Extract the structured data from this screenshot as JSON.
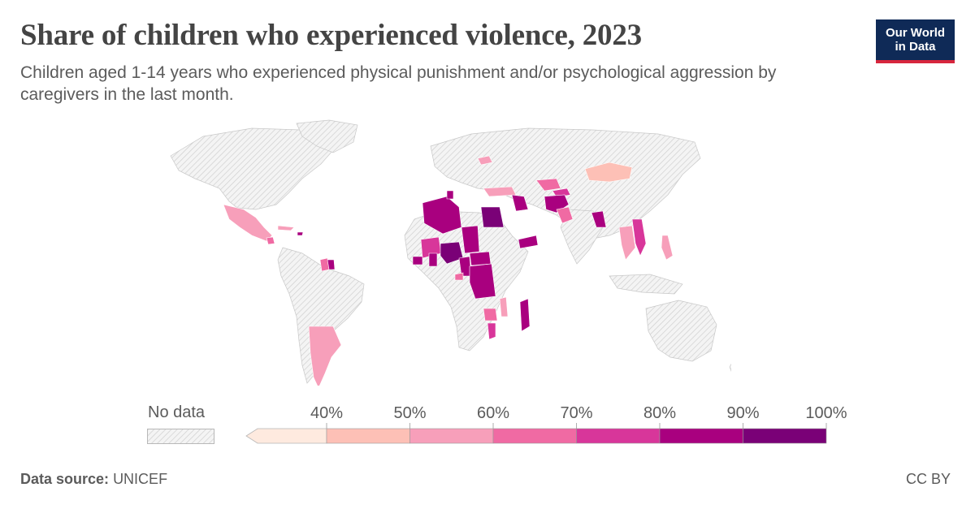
{
  "header": {
    "title": "Share of children who experienced violence, 2023",
    "subtitle": "Children aged 1-14 years who experienced physical punishment and/or psychological aggression by caregivers in the last month."
  },
  "logo": {
    "line1": "Our World",
    "line2": "in Data",
    "bg_color": "#0f2a57",
    "accent_color": "#d7263d"
  },
  "legend": {
    "no_data_label": "No data",
    "ticks": [
      "40%",
      "50%",
      "60%",
      "70%",
      "80%",
      "90%",
      "100%"
    ],
    "bins": [
      {
        "from": 40,
        "to": 50,
        "color": "#fdc0b6"
      },
      {
        "from": 50,
        "to": 60,
        "color": "#f79fba"
      },
      {
        "from": 60,
        "to": 70,
        "color": "#f06aa3"
      },
      {
        "from": 70,
        "to": 80,
        "color": "#d8369a"
      },
      {
        "from": 80,
        "to": 90,
        "color": "#a9007f"
      },
      {
        "from": 90,
        "to": 100,
        "color": "#7a0177"
      }
    ],
    "below_color": "#feeadf"
  },
  "footer": {
    "source_label": "Data source:",
    "source_value": "UNICEF",
    "license": "CC BY"
  },
  "map": {
    "no_data_fill": "#f2f2f2",
    "hatch_color": "#c9c9c9",
    "regions": [
      {
        "name": "Mexico",
        "bin": 60
      },
      {
        "name": "Guatemala",
        "bin": 70
      },
      {
        "name": "Cuba",
        "bin": 60
      },
      {
        "name": "Haiti",
        "bin": 80
      },
      {
        "name": "Jamaica",
        "bin": 80
      },
      {
        "name": "Guyana",
        "bin": 70
      },
      {
        "name": "Suriname",
        "bin": 80
      },
      {
        "name": "Argentina",
        "bin": 50
      },
      {
        "name": "Mongolia",
        "bin": 40
      },
      {
        "name": "Ukraine",
        "bin": 50
      },
      {
        "name": "Turkey",
        "bin": 50
      },
      {
        "name": "Georgia",
        "bin": 60
      },
      {
        "name": "Kazakhstan",
        "bin": 60
      },
      {
        "name": "Kyrgyzstan",
        "bin": 70
      },
      {
        "name": "Iraq",
        "bin": 80
      },
      {
        "name": "Afghanistan",
        "bin": 80
      },
      {
        "name": "Pakistan",
        "bin": 60
      },
      {
        "name": "Egypt",
        "bin": 90
      },
      {
        "name": "Algeria",
        "bin": 80
      },
      {
        "name": "Tunisia",
        "bin": 80
      },
      {
        "name": "Yemen",
        "bin": 80
      },
      {
        "name": "Bangladesh",
        "bin": 80
      },
      {
        "name": "Thailand",
        "bin": 60
      },
      {
        "name": "Vietnam",
        "bin": 70
      },
      {
        "name": "Laos",
        "bin": 70
      },
      {
        "name": "Philippines",
        "bin": 60
      },
      {
        "name": "Nigeria",
        "bin": 90
      },
      {
        "name": "Ghana",
        "bin": 80
      },
      {
        "name": "Togo",
        "bin": 80
      },
      {
        "name": "Mali",
        "bin": 70
      },
      {
        "name": "Sierra Leone",
        "bin": 80
      },
      {
        "name": "Chad",
        "bin": 80
      },
      {
        "name": "Cameroon",
        "bin": 80
      },
      {
        "name": "Central African Republic",
        "bin": 80
      },
      {
        "name": "DR Congo",
        "bin": 80
      },
      {
        "name": "Sao Tome",
        "bin": 60
      },
      {
        "name": "Zimbabwe",
        "bin": 60
      },
      {
        "name": "Malawi",
        "bin": 50
      },
      {
        "name": "Mozambique",
        "bin": 70
      },
      {
        "name": "Madagascar",
        "bin": 80
      },
      {
        "name": "Fiji",
        "bin": 80
      }
    ]
  }
}
